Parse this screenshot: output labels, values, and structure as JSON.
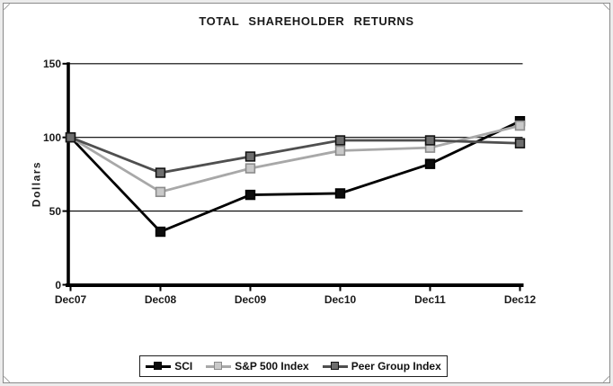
{
  "frame": {
    "background_color": "#ececec",
    "panel_color": "#ffffff",
    "border_color": "#8a8a8a"
  },
  "chart_data": {
    "type": "line",
    "title": "TOTAL SHAREHOLDER RETURNS",
    "xlabel": "",
    "ylabel": "Dollars",
    "categories": [
      "Dec07",
      "Dec08",
      "Dec09",
      "Dec10",
      "Dec11",
      "Dec12"
    ],
    "yticks": [
      150,
      100,
      50,
      0
    ],
    "ylim": [
      0,
      150
    ],
    "grid": "horizontal-only",
    "gridline_color": "#000000",
    "legend_position": "bottom-center-boxed",
    "series": [
      {
        "name": "SCI",
        "values": [
          100,
          36,
          61,
          62,
          82,
          111
        ],
        "color": "#000000",
        "marker": "square",
        "marker_fill": "#0d0d0d",
        "marker_border": "#000000"
      },
      {
        "name": "S&P 500 Index",
        "values": [
          100,
          63,
          79,
          91,
          93,
          108
        ],
        "color": "#a8a8a8",
        "marker": "square",
        "marker_fill": "#c9c9c9",
        "marker_border": "#8c8c8c"
      },
      {
        "name": "Peer Group Index",
        "values": [
          100,
          76,
          87,
          98,
          98,
          96
        ],
        "color": "#4f4f4f",
        "marker": "square",
        "marker_fill": "#6e6e6e",
        "marker_border": "#141414"
      }
    ]
  }
}
